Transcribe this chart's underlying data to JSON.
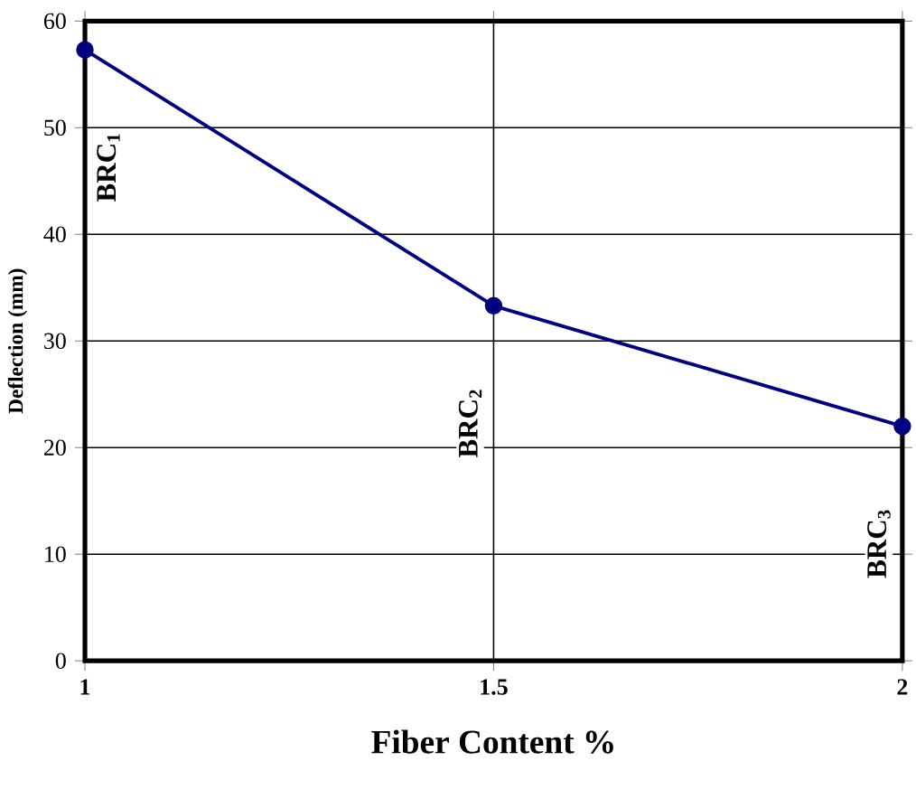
{
  "chart_data": {
    "type": "line",
    "xlabel": "Fiber Content %",
    "ylabel": "Deflection (mm)",
    "x": [
      1,
      1.5,
      2
    ],
    "series": [
      {
        "color": "#000080",
        "values": [
          57.3,
          33.3,
          22
        ]
      }
    ],
    "xlim": [
      1,
      2
    ],
    "xticks": [
      1,
      1.5,
      2
    ],
    "ylim": [
      0,
      60
    ],
    "yticks": [
      0,
      10,
      20,
      30,
      40,
      50,
      60
    ],
    "grid": true,
    "marker": "circle",
    "line_style": "solid",
    "annotations": [
      "BRC$_{1}$",
      "BRC$_{2}$",
      "BRC$_{3}$"
    ]
  }
}
